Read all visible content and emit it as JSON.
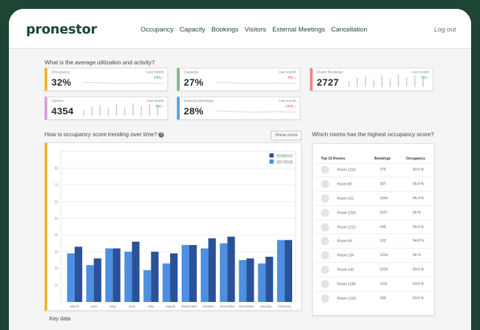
{
  "app": {
    "logo": "pronestor",
    "logout": "Log out"
  },
  "nav": [
    "Occupancy",
    "Capacity",
    "Bookings",
    "Visitors",
    "External Meetings",
    "Cancellation"
  ],
  "utilization": {
    "title": "What is the average utilization and activity?",
    "cards": [
      {
        "label": "Occupancy",
        "value": "32%",
        "last": "Last month",
        "change": "14%",
        "trend": "up",
        "accent": "#f0b429",
        "viz": "line"
      },
      {
        "label": "Capacity",
        "value": "27%",
        "last": "Last month",
        "change": "-4%",
        "trend": "down",
        "accent": "#7fb88b",
        "viz": "line"
      },
      {
        "label": "Room Bookings",
        "value": "2727",
        "last": "Last month",
        "change": "1%",
        "trend": "up",
        "accent": "#f28b82",
        "viz": "bars"
      },
      {
        "label": "Visitors",
        "value": "4354",
        "last": "Last month",
        "change": "5%",
        "trend": "up",
        "accent": "#d79ed6",
        "viz": "bars"
      },
      {
        "label": "External Meetings",
        "value": "28%",
        "last": "Last month",
        "change": "-15%",
        "trend": "down",
        "accent": "#5aa0e6",
        "viz": "line"
      }
    ]
  },
  "trend": {
    "title": "How is occupancy score trending over time?",
    "show_more": "Show more",
    "accent": "#f0b429"
  },
  "chart_data": {
    "type": "bar",
    "categories": [
      "March",
      "April",
      "May",
      "June",
      "July",
      "August",
      "September",
      "October",
      "November",
      "December",
      "January",
      "February"
    ],
    "series": [
      {
        "name": "2018/2019",
        "color": "#2a5298",
        "values": [
          33,
          26,
          32,
          36,
          30,
          29,
          34,
          38,
          39,
          26,
          27,
          37
        ]
      },
      {
        "name": "2017/2018",
        "color": "#4d8fe0",
        "values": [
          29,
          22,
          32,
          30,
          19,
          23,
          34,
          32,
          35,
          25,
          23,
          37
        ]
      }
    ],
    "y_ticks": [
      10,
      20,
      30,
      40,
      50,
      60,
      70,
      80
    ],
    "ylim": [
      0,
      90
    ],
    "legend_position": "top-right"
  },
  "rooms": {
    "title": "Which rooms has the highest occupancy score?",
    "headers": [
      "Top 10 Rooms",
      "Bookings",
      "Occupancy"
    ],
    "rows": [
      [
        "Room 1216",
        "275",
        "60.5 %"
      ],
      [
        "Room 80",
        "307",
        "56.8 %"
      ],
      [
        "Room 101",
        "1164",
        "56.4 %"
      ],
      [
        "Room 1200",
        "1167",
        "55 %"
      ],
      [
        "Room 1212",
        "146",
        "54.9 %"
      ],
      [
        "Room 64",
        "122",
        "54.8 %"
      ],
      [
        "Room 134",
        "1214",
        "54 %"
      ],
      [
        "Room 143",
        "1015",
        "53.6 %"
      ],
      [
        "Room 1198",
        "1311",
        "53.6 %"
      ],
      [
        "Room 1218",
        "186",
        "53.5 %"
      ]
    ]
  },
  "key_data": {
    "title": "Key data"
  }
}
